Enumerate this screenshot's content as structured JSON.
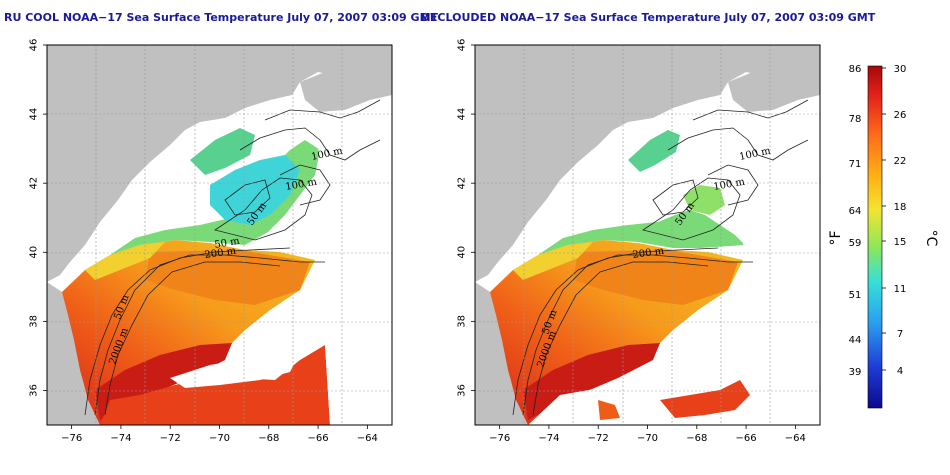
{
  "maps": [
    {
      "id": "left",
      "title": "RU COOL NOAA−17 Sea Surface Temperature July 07, 2007 03:09 GMT",
      "contour_labels": [
        "100 m",
        "100 m",
        "50 m",
        "200 m",
        "50 m",
        "2000 m",
        "50 m"
      ]
    },
    {
      "id": "right",
      "title": "DECLOUDED NOAA−17 Sea Surface Temperature July 07, 2007 03:09 GMT",
      "contour_labels": [
        "100 m",
        "100 m",
        "50 m",
        "200 m",
        "50 m",
        "2000 m"
      ]
    }
  ],
  "axes": {
    "x_ticks": [
      "−76",
      "−74",
      "−72",
      "−70",
      "−68",
      "−66",
      "−64"
    ],
    "y_ticks": [
      "36",
      "38",
      "40",
      "42",
      "44",
      "46"
    ],
    "lon_range": [
      -77,
      -63
    ],
    "lat_range": [
      35,
      46
    ]
  },
  "colorbar": {
    "unit_f": "°F",
    "unit_c": "°C",
    "f_ticks": [
      "86",
      "78",
      "71",
      "64",
      "59",
      "51",
      "44",
      "39"
    ],
    "c_ticks": [
      "30",
      "26",
      "22",
      "18",
      "15",
      "11",
      "7",
      "4"
    ],
    "colors": [
      "#0a0a8c",
      "#1f3cd6",
      "#2aa0ef",
      "#36e0d8",
      "#8de65a",
      "#f2e530",
      "#ffb014",
      "#ff6a1a",
      "#e4241a",
      "#a80808"
    ]
  },
  "colors": {
    "land": "#c0c0c0",
    "ocean_warm": "#f07a18",
    "ocean_hot": "#d8261a",
    "shelf_cool": "#6ad882",
    "cloud_gap": "#ffffff",
    "title": "#1a1a9a"
  }
}
